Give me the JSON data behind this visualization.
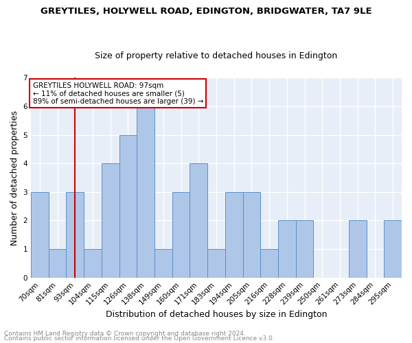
{
  "title": "GREYTILES, HOLYWELL ROAD, EDINGTON, BRIDGWATER, TA7 9LE",
  "subtitle": "Size of property relative to detached houses in Edington",
  "xlabel": "Distribution of detached houses by size in Edington",
  "ylabel": "Number of detached properties",
  "categories": [
    "70sqm",
    "81sqm",
    "93sqm",
    "104sqm",
    "115sqm",
    "126sqm",
    "138sqm",
    "149sqm",
    "160sqm",
    "171sqm",
    "183sqm",
    "194sqm",
    "205sqm",
    "216sqm",
    "228sqm",
    "239sqm",
    "250sqm",
    "261sqm",
    "273sqm",
    "284sqm",
    "295sqm"
  ],
  "values": [
    3,
    1,
    3,
    1,
    4,
    5,
    6,
    1,
    3,
    4,
    1,
    3,
    3,
    1,
    2,
    2,
    0,
    0,
    2,
    0,
    2
  ],
  "bar_color": "#aec6e8",
  "bar_edge_color": "#5b8fc9",
  "highlight_index": 2,
  "highlight_line_color": "#cc0000",
  "ylim": [
    0,
    7
  ],
  "yticks": [
    0,
    1,
    2,
    3,
    4,
    5,
    6,
    7
  ],
  "annotation_title": "GREYTILES HOLYWELL ROAD: 97sqm",
  "annotation_line1": "← 11% of detached houses are smaller (5)",
  "annotation_line2": "89% of semi-detached houses are larger (39) →",
  "annotation_box_color": "#ffffff",
  "annotation_box_edge": "#cc0000",
  "footer1": "Contains HM Land Registry data © Crown copyright and database right 2024.",
  "footer2": "Contains public sector information licensed under the Open Government Licence v3.0.",
  "bg_color": "#e8eef7",
  "grid_color": "#ffffff",
  "title_fontsize": 9.5,
  "subtitle_fontsize": 9,
  "xlabel_fontsize": 9,
  "ylabel_fontsize": 9,
  "tick_fontsize": 7.5,
  "annotation_fontsize": 7.5,
  "footer_fontsize": 6.5
}
